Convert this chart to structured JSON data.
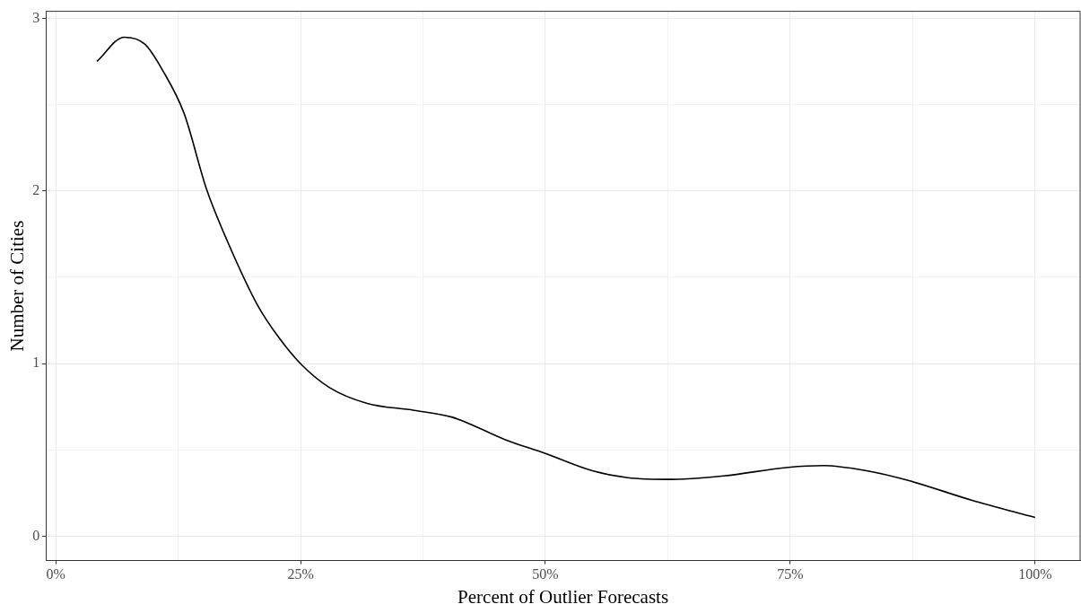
{
  "chart_data": {
    "type": "line",
    "xlabel": "Percent of Outlier Forecasts",
    "ylabel": "Number of Cities",
    "xlim": [
      -1,
      104.6
    ],
    "ylim": [
      -0.14,
      3.04
    ],
    "xticks": [
      {
        "value": 0,
        "label": "0%"
      },
      {
        "value": 12.5,
        "label": null
      },
      {
        "value": 25,
        "label": "25%"
      },
      {
        "value": 37.5,
        "label": null
      },
      {
        "value": 50,
        "label": "50%"
      },
      {
        "value": 62.5,
        "label": null
      },
      {
        "value": 75,
        "label": "75%"
      },
      {
        "value": 87.5,
        "label": null
      },
      {
        "value": 100,
        "label": "100%"
      }
    ],
    "yticks": [
      0,
      {
        "value": 0.5,
        "label": null
      },
      1,
      {
        "value": 1.5,
        "label": null
      },
      2,
      {
        "value": 2.5,
        "label": null
      },
      3
    ],
    "grid": true,
    "marker": "none",
    "line_style": "solid",
    "series": [
      {
        "color": "#000000",
        "x": [
          4.2,
          7.0,
          9.1,
          10.9,
          13.1,
          15.4,
          17.6,
          20.6,
          22.8,
          25,
          28.0,
          31.8,
          36.6,
          40.5,
          45.9,
          50,
          54.8,
          58.4,
          62.9,
          68.2,
          74.8,
          78.4,
          82.8,
          87.3,
          93.5,
          100
        ],
        "values": [
          2.75,
          2.89,
          2.85,
          2.7,
          2.45,
          2.01,
          1.7,
          1.34,
          1.15,
          1.0,
          0.86,
          0.77,
          0.73,
          0.69,
          0.56,
          0.48,
          0.38,
          0.34,
          0.33,
          0.35,
          0.4,
          0.41,
          0.38,
          0.32,
          0.21,
          0.11
        ]
      }
    ]
  }
}
